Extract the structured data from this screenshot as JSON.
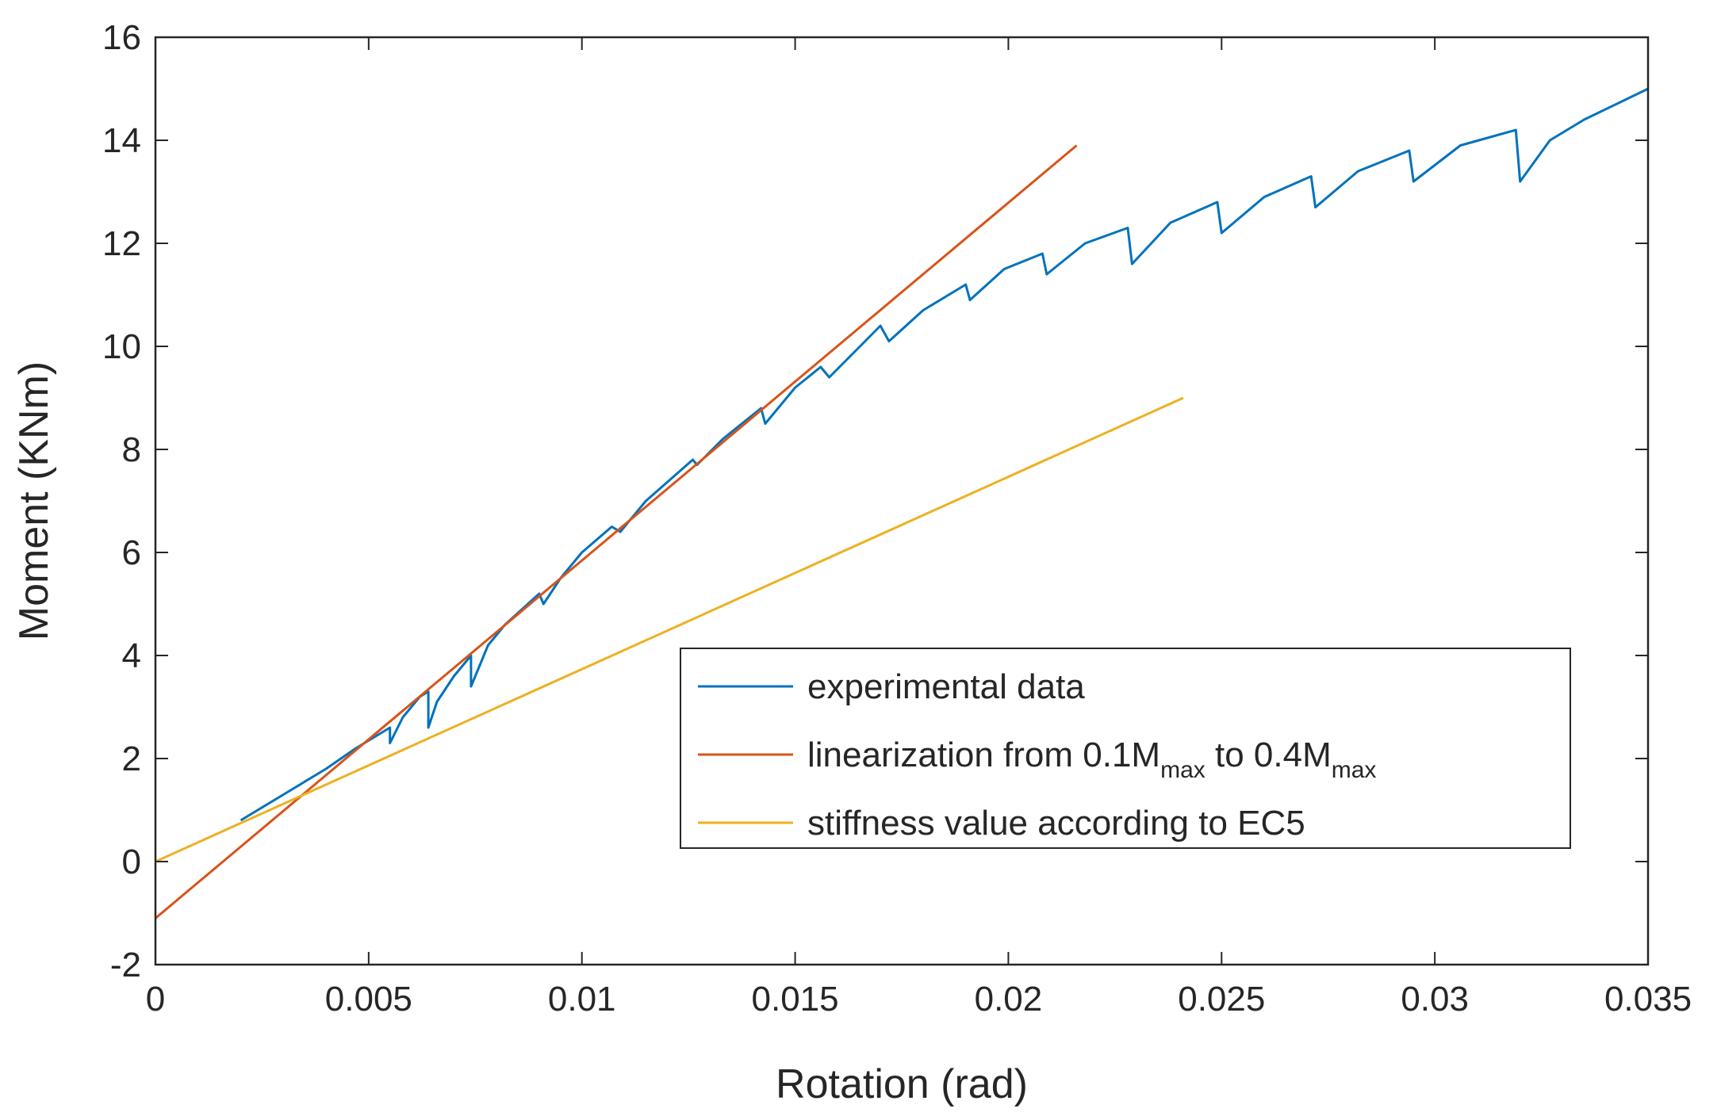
{
  "chart_data": {
    "type": "line",
    "title": "",
    "xlabel": "Rotation (rad)",
    "ylabel": "Moment (KNm)",
    "xlim": [
      0,
      0.035
    ],
    "ylim": [
      -2,
      16
    ],
    "xticks": [
      "0",
      "0.005",
      "0.01",
      "0.015",
      "0.02",
      "0.025",
      "0.03",
      "0.035"
    ],
    "yticks": [
      "-2",
      "0",
      "2",
      "4",
      "6",
      "8",
      "10",
      "12",
      "14",
      "16"
    ],
    "grid": false,
    "legend_position": "lower-right",
    "series": [
      {
        "name": "experimental data",
        "color": "#0072BD",
        "points": [
          [
            0.002,
            0.8
          ],
          [
            0.003,
            1.3
          ],
          [
            0.004,
            1.8
          ],
          [
            0.0047,
            2.2
          ],
          [
            0.0055,
            2.6
          ],
          [
            0.0055,
            2.3
          ],
          [
            0.0058,
            2.8
          ],
          [
            0.0062,
            3.2
          ],
          [
            0.0064,
            3.3
          ],
          [
            0.0064,
            2.6
          ],
          [
            0.0066,
            3.1
          ],
          [
            0.007,
            3.6
          ],
          [
            0.0074,
            4.0
          ],
          [
            0.0074,
            3.4
          ],
          [
            0.0076,
            3.8
          ],
          [
            0.0078,
            4.2
          ],
          [
            0.0082,
            4.6
          ],
          [
            0.009,
            5.2
          ],
          [
            0.0091,
            5.0
          ],
          [
            0.0095,
            5.5
          ],
          [
            0.01,
            6.0
          ],
          [
            0.0107,
            6.5
          ],
          [
            0.0109,
            6.4
          ],
          [
            0.0115,
            7.0
          ],
          [
            0.0126,
            7.8
          ],
          [
            0.0127,
            7.7
          ],
          [
            0.0133,
            8.2
          ],
          [
            0.0142,
            8.8
          ],
          [
            0.0143,
            8.5
          ],
          [
            0.015,
            9.2
          ],
          [
            0.0156,
            9.6
          ],
          [
            0.0158,
            9.4
          ],
          [
            0.0164,
            9.9
          ],
          [
            0.017,
            10.4
          ],
          [
            0.0172,
            10.1
          ],
          [
            0.018,
            10.7
          ],
          [
            0.019,
            11.2
          ],
          [
            0.0191,
            10.9
          ],
          [
            0.0199,
            11.5
          ],
          [
            0.0208,
            11.8
          ],
          [
            0.0209,
            11.4
          ],
          [
            0.0218,
            12.0
          ],
          [
            0.0228,
            12.3
          ],
          [
            0.0229,
            11.6
          ],
          [
            0.0238,
            12.4
          ],
          [
            0.0249,
            12.8
          ],
          [
            0.025,
            12.2
          ],
          [
            0.026,
            12.9
          ],
          [
            0.0271,
            13.3
          ],
          [
            0.0272,
            12.7
          ],
          [
            0.0282,
            13.4
          ],
          [
            0.0294,
            13.8
          ],
          [
            0.0295,
            13.2
          ],
          [
            0.0306,
            13.9
          ],
          [
            0.0319,
            14.2
          ],
          [
            0.032,
            13.2
          ],
          [
            0.0327,
            14.0
          ],
          [
            0.0335,
            14.4
          ],
          [
            0.035,
            15.0
          ]
        ]
      },
      {
        "name": "linearization from 0.1M",
        "color": "#D95319",
        "points": [
          [
            0.0,
            -1.1
          ],
          [
            0.0216,
            13.9
          ]
        ]
      },
      {
        "name": "stiffness value according to EC5",
        "color": "#EDB120",
        "points": [
          [
            0.0,
            0.0
          ],
          [
            0.0241,
            9.0
          ]
        ]
      }
    ],
    "legend": [
      {
        "text": "experimental data"
      },
      {
        "prefix": "linearization from 0.1M",
        "sub1": "max",
        "middle": " to 0.4M",
        "sub2": "max"
      },
      {
        "text": "stiffness value according to EC5"
      }
    ]
  }
}
